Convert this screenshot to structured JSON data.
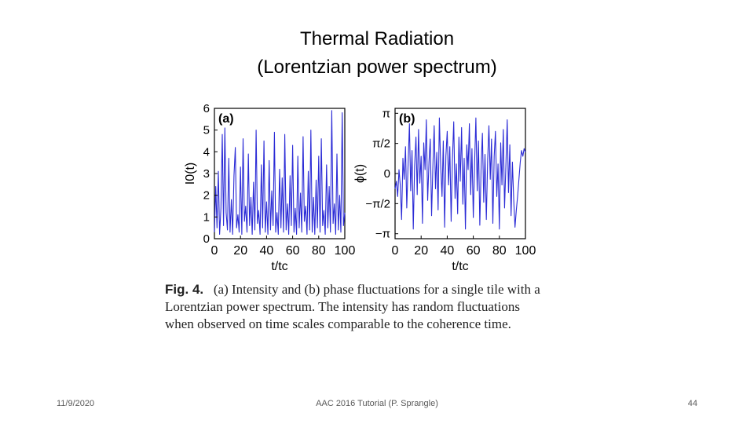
{
  "slide": {
    "title_line1": "Thermal Radiation",
    "title_line2": "(Lorentzian power spectrum)",
    "footer_date": "11/9/2020",
    "footer_center": "AAC 2016 Tutorial (P. Sprangle)",
    "footer_page": "44"
  },
  "caption": {
    "label": "Fig. 4.",
    "line1": "(a) Intensity and (b) phase fluctuations for a single tile with a",
    "line2": "Lorentzian power spectrum. The intensity has random fluctuations",
    "line3": "when observed on time scales comparable to the coherence time."
  },
  "chart_data": [
    {
      "type": "line",
      "panel_label": "(a)",
      "ylabel": "I0(t)",
      "xlabel": "t/tc",
      "xlim": [
        0,
        100
      ],
      "ylim": [
        0,
        6
      ],
      "xticks": [
        "0",
        "20",
        "40",
        "60",
        "80",
        "100"
      ],
      "yticks": [
        "0",
        "1",
        "2",
        "3",
        "4",
        "5",
        "6"
      ],
      "line_color": "#2b2bd6",
      "series": [
        {
          "x": [
            0,
            1,
            2,
            3,
            4,
            5,
            6,
            7,
            8,
            9,
            10,
            11,
            12,
            13,
            14,
            15,
            16,
            17,
            18,
            19,
            20,
            21,
            22,
            23,
            24,
            25,
            26,
            27,
            28,
            29,
            30,
            31,
            32,
            33,
            34,
            35,
            36,
            37,
            38,
            39,
            40,
            41,
            42,
            43,
            44,
            45,
            46,
            47,
            48,
            49,
            50,
            51,
            52,
            53,
            54,
            55,
            56,
            57,
            58,
            59,
            60,
            61,
            62,
            63,
            64,
            65,
            66,
            67,
            68,
            69,
            70,
            71,
            72,
            73,
            74,
            75,
            76,
            77,
            78,
            79,
            80,
            81,
            82,
            83,
            84,
            85,
            86,
            87,
            88,
            89,
            90,
            91,
            92,
            93,
            94,
            95,
            96,
            97,
            98,
            99,
            100
          ],
          "values": [
            0.3,
            2.4,
            0.5,
            3.1,
            0.2,
            1.4,
            4.8,
            0.6,
            5.1,
            1.2,
            0.4,
            3.7,
            0.3,
            1.8,
            0.2,
            2.9,
            4.2,
            0.5,
            1.1,
            0.3,
            3.3,
            0.2,
            4.6,
            0.8,
            1.5,
            0.3,
            3.9,
            0.6,
            1.9,
            0.2,
            2.6,
            0.4,
            5.0,
            0.7,
            1.3,
            0.2,
            3.4,
            0.5,
            4.5,
            0.3,
            1.7,
            0.2,
            3.6,
            0.4,
            2.2,
            0.6,
            4.9,
            0.3,
            1.2,
            0.2,
            3.2,
            0.5,
            2.8,
            0.3,
            4.8,
            0.4,
            1.6,
            0.2,
            2.9,
            0.6,
            4.3,
            0.3,
            1.4,
            0.2,
            3.8,
            0.5,
            2.1,
            0.3,
            4.7,
            0.8,
            1.5,
            0.2,
            3.1,
            0.4,
            5.0,
            0.3,
            1.9,
            0.2,
            2.7,
            0.5,
            3.8,
            0.3,
            4.6,
            0.6,
            1.3,
            0.2,
            3.4,
            0.5,
            2.4,
            0.3,
            5.9,
            0.7,
            1.6,
            0.2,
            3.9,
            0.4,
            2.0,
            0.3,
            5.8,
            0.6,
            1.2
          ]
        }
      ]
    },
    {
      "type": "line",
      "panel_label": "(b)",
      "ylabel": "ϕ(t)",
      "xlabel": "t/tc",
      "xlim": [
        0,
        100
      ],
      "ylim": [
        -3.4,
        3.4
      ],
      "xticks": [
        "0",
        "20",
        "40",
        "60",
        "80",
        "100"
      ],
      "yticks": [
        "π",
        "π/2",
        "0",
        "−π/2",
        "−π"
      ],
      "line_color": "#2b2bd6",
      "series": [
        {
          "x": [
            0,
            1,
            2,
            3,
            4,
            5,
            6,
            7,
            8,
            9,
            10,
            11,
            12,
            13,
            14,
            15,
            16,
            17,
            18,
            19,
            20,
            21,
            22,
            23,
            24,
            25,
            26,
            27,
            28,
            29,
            30,
            31,
            32,
            33,
            34,
            35,
            36,
            37,
            38,
            39,
            40,
            41,
            42,
            43,
            44,
            45,
            46,
            47,
            48,
            49,
            50,
            51,
            52,
            53,
            54,
            55,
            56,
            57,
            58,
            59,
            60,
            61,
            62,
            63,
            64,
            65,
            66,
            67,
            68,
            69,
            70,
            71,
            72,
            73,
            74,
            75,
            76,
            77,
            78,
            79,
            80,
            81,
            82,
            83,
            84,
            85,
            86,
            87,
            88,
            89,
            90,
            91,
            92,
            93,
            94,
            95,
            96,
            97,
            98,
            99,
            100
          ],
          "values": [
            -0.8,
            -0.4,
            -1.2,
            0.2,
            -0.6,
            -2.4,
            0.8,
            -0.3,
            1.4,
            -1.8,
            0.5,
            2.6,
            -0.9,
            1.2,
            -2.9,
            0.4,
            1.9,
            -1.1,
            2.3,
            -0.5,
            0.9,
            -2.6,
            1.6,
            0.2,
            2.8,
            -1.4,
            0.6,
            1.8,
            -2.2,
            0.3,
            2.5,
            -0.8,
            1.1,
            -1.9,
            2.9,
            0.4,
            -1.2,
            1.7,
            -2.8,
            0.9,
            2.2,
            -0.6,
            1.4,
            -2.5,
            0.7,
            2.7,
            -1.3,
            0.5,
            -2.1,
            1.9,
            -0.4,
            2.4,
            -1.6,
            0.8,
            -2.9,
            1.5,
            0.2,
            2.6,
            -1.1,
            1.3,
            -2.3,
            0.6,
            2.9,
            -0.9,
            1.7,
            -2.7,
            0.4,
            2.1,
            -1.5,
            1.0,
            -2.4,
            0.7,
            2.5,
            -0.3,
            1.8,
            -2.6,
            0.9,
            2.2,
            -1.2,
            0.5,
            -2.9,
            1.6,
            -0.6,
            2.3,
            -1.8,
            0.4,
            2.8,
            -1.0,
            1.5,
            -2.2,
            0.6,
            -1.4,
            -2.8,
            -1.9,
            -1.2,
            -0.3,
            0.6,
            1.2,
            0.9,
            1.3,
            1.1
          ]
        }
      ]
    }
  ]
}
